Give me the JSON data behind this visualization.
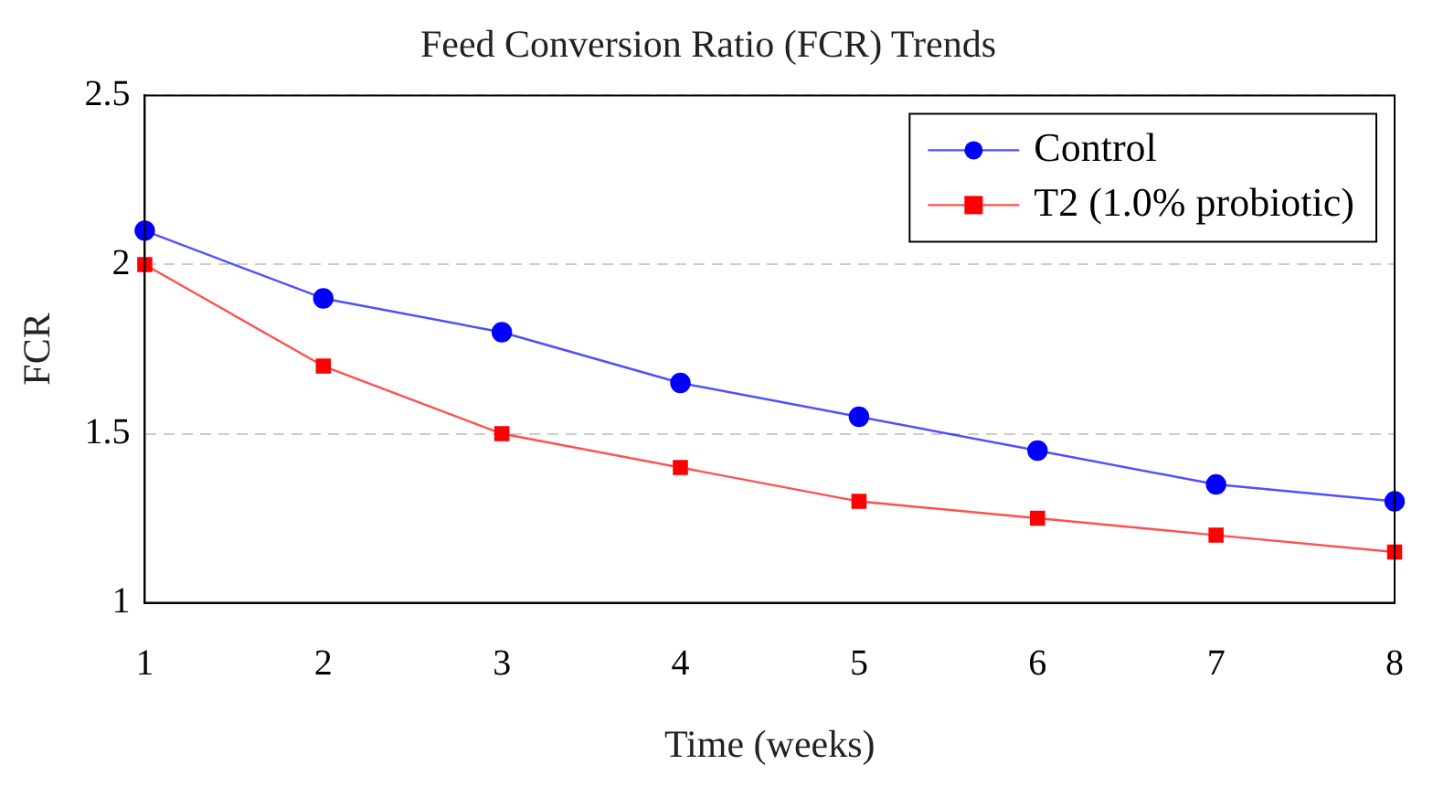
{
  "chart_data": {
    "type": "line",
    "title": "Feed Conversion Ratio (FCR) Trends",
    "xlabel": "Time (weeks)",
    "ylabel": "FCR",
    "x": [
      1,
      2,
      3,
      4,
      5,
      6,
      7,
      8
    ],
    "series": [
      {
        "name": "Control",
        "color": "#0000ff",
        "values": [
          2.1,
          1.9,
          1.8,
          1.65,
          1.55,
          1.45,
          1.35,
          1.3
        ],
        "marker": "circle"
      },
      {
        "name": "T2 (1.0% probiotic)",
        "color": "#ff0000",
        "values": [
          2.0,
          1.7,
          1.5,
          1.4,
          1.3,
          1.25,
          1.2,
          1.15
        ],
        "marker": "square"
      }
    ],
    "xlim": [
      1,
      8
    ],
    "xticks": [
      1,
      2,
      3,
      4,
      5,
      6,
      7,
      8
    ],
    "ylim": [
      1,
      2.5
    ],
    "yticks": [
      1,
      1.5,
      2,
      2.5
    ],
    "grid": "y",
    "legend": "top right"
  }
}
